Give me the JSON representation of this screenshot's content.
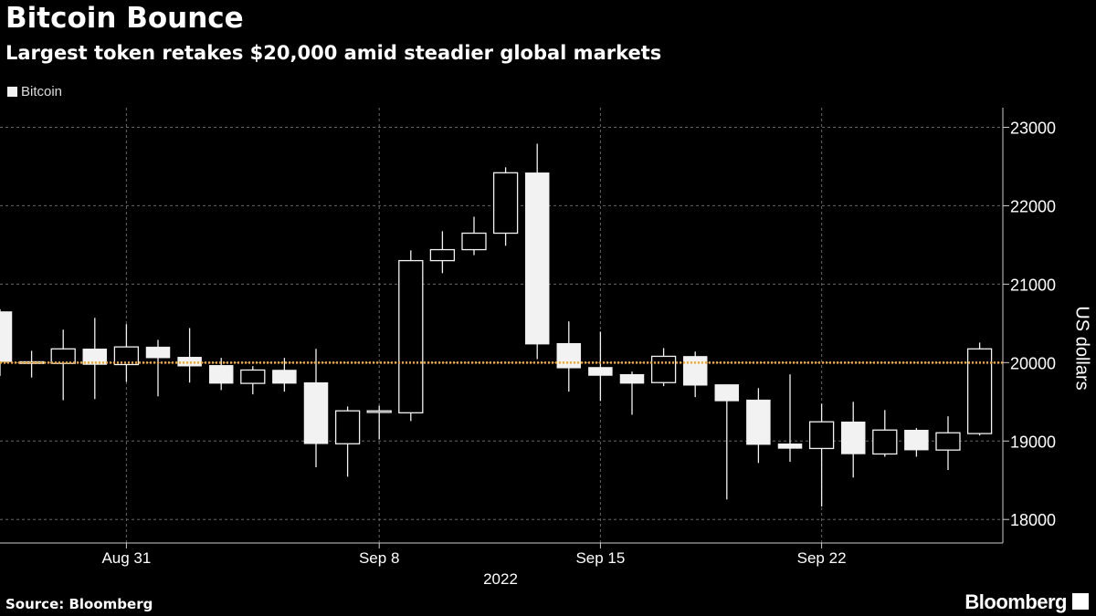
{
  "title": "Bitcoin Bounce",
  "subtitle": "Largest token retakes $20,000 amid steadier global markets",
  "source": "Source: Bloomberg",
  "brand": "Bloomberg",
  "chart_data": {
    "type": "candlestick",
    "legend": [
      {
        "name": "Bitcoin",
        "color": "#f2f2f2"
      }
    ],
    "legend_placement": "top-left",
    "ylabel": "US dollars",
    "xlabel": "2022",
    "ylim": [
      17700,
      23250
    ],
    "yticks": [
      18000,
      19000,
      20000,
      21000,
      22000,
      23000
    ],
    "xticks": [
      {
        "date": "2022-08-31",
        "label": "Aug 31"
      },
      {
        "date": "2022-09-08",
        "label": "Sep 8"
      },
      {
        "date": "2022-09-15",
        "label": "Sep 15"
      },
      {
        "date": "2022-09-22",
        "label": "Sep 22"
      }
    ],
    "xlim": [
      "2022-08-27",
      "2022-09-27"
    ],
    "grid": true,
    "reference_line": {
      "value": 20000,
      "color": "#f5a623"
    },
    "up_style": "hollow",
    "down_style": "filled",
    "candles": [
      {
        "date": "2022-08-27",
        "open": 20650,
        "high": 20680,
        "low": 19830,
        "close": 20010
      },
      {
        "date": "2022-08-28",
        "open": 19990,
        "high": 20150,
        "low": 19810,
        "close": 20010
      },
      {
        "date": "2022-08-29",
        "open": 19990,
        "high": 20420,
        "low": 19520,
        "close": 20175
      },
      {
        "date": "2022-08-30",
        "open": 20175,
        "high": 20570,
        "low": 19535,
        "close": 19975
      },
      {
        "date": "2022-08-31",
        "open": 19975,
        "high": 20490,
        "low": 19755,
        "close": 20200
      },
      {
        "date": "2022-09-01",
        "open": 20200,
        "high": 20290,
        "low": 19570,
        "close": 20060
      },
      {
        "date": "2022-09-02",
        "open": 20070,
        "high": 20440,
        "low": 19745,
        "close": 19955
      },
      {
        "date": "2022-09-03",
        "open": 19965,
        "high": 20060,
        "low": 19650,
        "close": 19735
      },
      {
        "date": "2022-09-04",
        "open": 19735,
        "high": 19955,
        "low": 19595,
        "close": 19905
      },
      {
        "date": "2022-09-05",
        "open": 19905,
        "high": 20060,
        "low": 19630,
        "close": 19735
      },
      {
        "date": "2022-09-06",
        "open": 19745,
        "high": 20175,
        "low": 18665,
        "close": 18965
      },
      {
        "date": "2022-09-07",
        "open": 18965,
        "high": 19440,
        "low": 18545,
        "close": 19385
      },
      {
        "date": "2022-09-08",
        "open": 19365,
        "high": 19450,
        "low": 19020,
        "close": 19385
      },
      {
        "date": "2022-09-09",
        "open": 19360,
        "high": 21430,
        "low": 19255,
        "close": 21300
      },
      {
        "date": "2022-09-10",
        "open": 21300,
        "high": 21675,
        "low": 21140,
        "close": 21440
      },
      {
        "date": "2022-09-11",
        "open": 21440,
        "high": 21860,
        "low": 21370,
        "close": 21650
      },
      {
        "date": "2022-09-12",
        "open": 21650,
        "high": 22490,
        "low": 21490,
        "close": 22420
      },
      {
        "date": "2022-09-13",
        "open": 22420,
        "high": 22790,
        "low": 20045,
        "close": 20235
      },
      {
        "date": "2022-09-14",
        "open": 20245,
        "high": 20525,
        "low": 19630,
        "close": 19930
      },
      {
        "date": "2022-09-15",
        "open": 19940,
        "high": 20395,
        "low": 19510,
        "close": 19835
      },
      {
        "date": "2022-09-16",
        "open": 19850,
        "high": 19885,
        "low": 19335,
        "close": 19735
      },
      {
        "date": "2022-09-17",
        "open": 19745,
        "high": 20185,
        "low": 19700,
        "close": 20080
      },
      {
        "date": "2022-09-18",
        "open": 20080,
        "high": 20140,
        "low": 19560,
        "close": 19710
      },
      {
        "date": "2022-09-19",
        "open": 19720,
        "high": 19720,
        "low": 18255,
        "close": 19510
      },
      {
        "date": "2022-09-20",
        "open": 19525,
        "high": 19675,
        "low": 18720,
        "close": 18955
      },
      {
        "date": "2022-09-21",
        "open": 18965,
        "high": 19850,
        "low": 18735,
        "close": 18905
      },
      {
        "date": "2022-09-22",
        "open": 18905,
        "high": 19475,
        "low": 18165,
        "close": 19245
      },
      {
        "date": "2022-09-23",
        "open": 19245,
        "high": 19500,
        "low": 18535,
        "close": 18835
      },
      {
        "date": "2022-09-24",
        "open": 18835,
        "high": 19395,
        "low": 18800,
        "close": 19140
      },
      {
        "date": "2022-09-25",
        "open": 19140,
        "high": 19165,
        "low": 18800,
        "close": 18885
      },
      {
        "date": "2022-09-26",
        "open": 18885,
        "high": 19315,
        "low": 18630,
        "close": 19105
      },
      {
        "date": "2022-09-27",
        "open": 19095,
        "high": 20255,
        "low": 19070,
        "close": 20175
      }
    ]
  }
}
